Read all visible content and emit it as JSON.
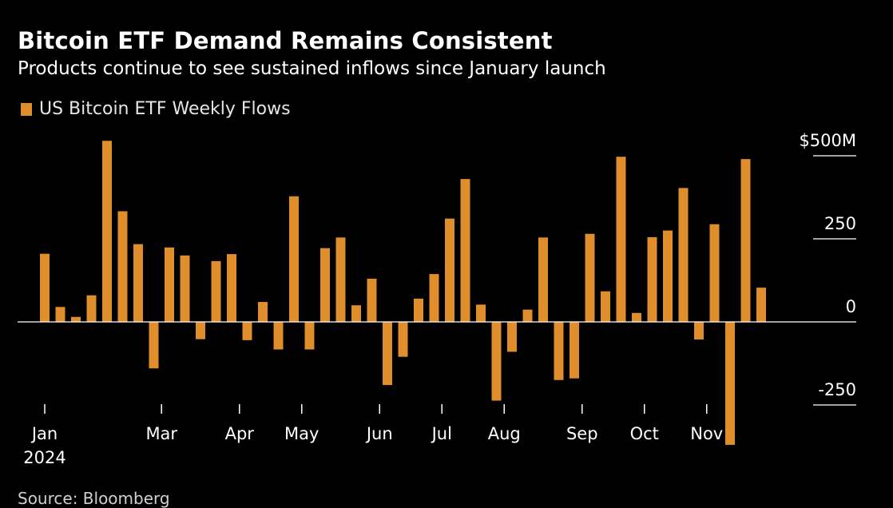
{
  "header": {
    "title": "Bitcoin ETF Demand Remains Consistent",
    "subtitle": "Products continue to see sustained inflows since January launch"
  },
  "legend": {
    "label": "US Bitcoin ETF Weekly Flows",
    "color": "#E08D2B"
  },
  "footer": {
    "source": "Source: Bloomberg"
  },
  "colors": {
    "bar": "#E08D2B",
    "background": "#000000",
    "text": "#FFFFFF",
    "gridline": "#FFFFFF"
  },
  "chart_data": {
    "type": "bar",
    "title": "Bitcoin ETF Demand Remains Consistent",
    "subtitle": "Products continue to see sustained inflows since January launch",
    "unit": "$M",
    "ylim": [
      -370,
      545
    ],
    "y_ticks": [
      {
        "value": 500,
        "label": "$500M"
      },
      {
        "value": 250,
        "label": "250"
      },
      {
        "value": 0,
        "label": "0"
      },
      {
        "value": -250,
        "label": "-250"
      }
    ],
    "x_ticks": [
      {
        "index": 0,
        "label": "Jan",
        "sublabel": "2024"
      },
      {
        "index": 7.5,
        "label": "Mar"
      },
      {
        "index": 12.5,
        "label": "Apr"
      },
      {
        "index": 16.5,
        "label": "May"
      },
      {
        "index": 21.5,
        "label": "Jun"
      },
      {
        "index": 25.5,
        "label": "Jul"
      },
      {
        "index": 29.5,
        "label": "Aug"
      },
      {
        "index": 34.5,
        "label": "Sep"
      },
      {
        "index": 38.5,
        "label": "Oct"
      },
      {
        "index": 42.5,
        "label": "Nov"
      }
    ],
    "series": [
      {
        "name": "US Bitcoin ETF Weekly Flows",
        "values": [
          205,
          45,
          15,
          80,
          545,
          333,
          234,
          -140,
          224,
          200,
          -52,
          183,
          204,
          -55,
          60,
          -83,
          378,
          -83,
          222,
          254,
          50,
          130,
          -190,
          -105,
          70,
          144,
          311,
          430,
          52,
          -237,
          -90,
          37,
          254,
          -175,
          -170,
          265,
          92,
          497,
          27,
          255,
          275,
          403,
          -53,
          294,
          -370,
          490,
          103
        ]
      }
    ]
  }
}
